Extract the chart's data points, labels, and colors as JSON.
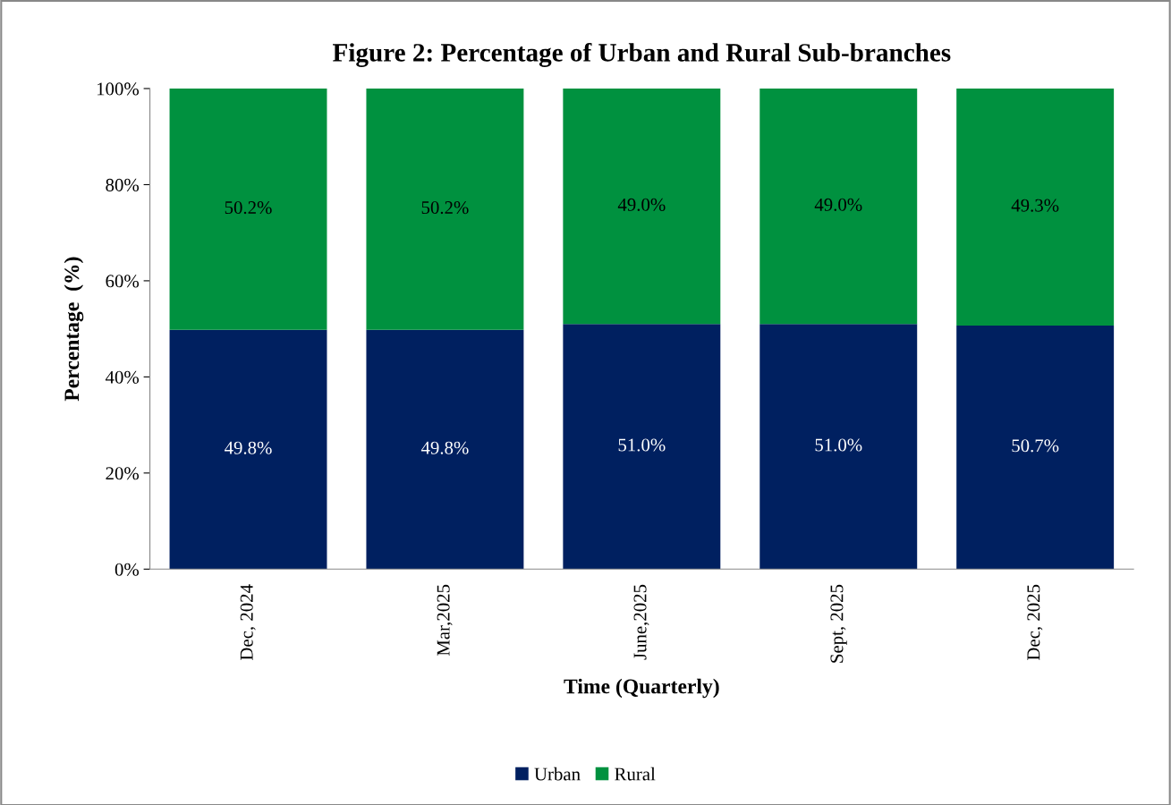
{
  "chart_data": {
    "type": "bar",
    "stacked": true,
    "title": "Figure 2: Percentage of Urban and Rural Sub-branches",
    "xlabel": "Time (Quarterly)",
    "ylabel": "Percentage  (%)",
    "categories": [
      "Dec, 2024",
      "Mar,2025",
      "June,2025",
      "Sept, 2025",
      "Dec, 2025"
    ],
    "series": [
      {
        "name": "Urban",
        "color": "#002060",
        "values": [
          49.8,
          49.8,
          51.0,
          51.0,
          50.7
        ],
        "value_labels": [
          "49.8%",
          "49.8%",
          "51.0%",
          "51.0%",
          "50.7%"
        ]
      },
      {
        "name": "Rural",
        "color": "#00913f",
        "values": [
          50.2,
          50.2,
          49.0,
          49.0,
          49.3
        ],
        "value_labels": [
          "50.2%",
          "50.2%",
          "49.0%",
          "49.0%",
          "49.3%"
        ]
      }
    ],
    "ylim": [
      0,
      100
    ],
    "yticks": [
      {
        "value": 0,
        "label": "0%"
      },
      {
        "value": 20,
        "label": "20%"
      },
      {
        "value": 40,
        "label": "40%"
      },
      {
        "value": 60,
        "label": "60%"
      },
      {
        "value": 80,
        "label": "80%"
      },
      {
        "value": 100,
        "label": "100%"
      }
    ],
    "legend": "bottom",
    "grid": false
  }
}
